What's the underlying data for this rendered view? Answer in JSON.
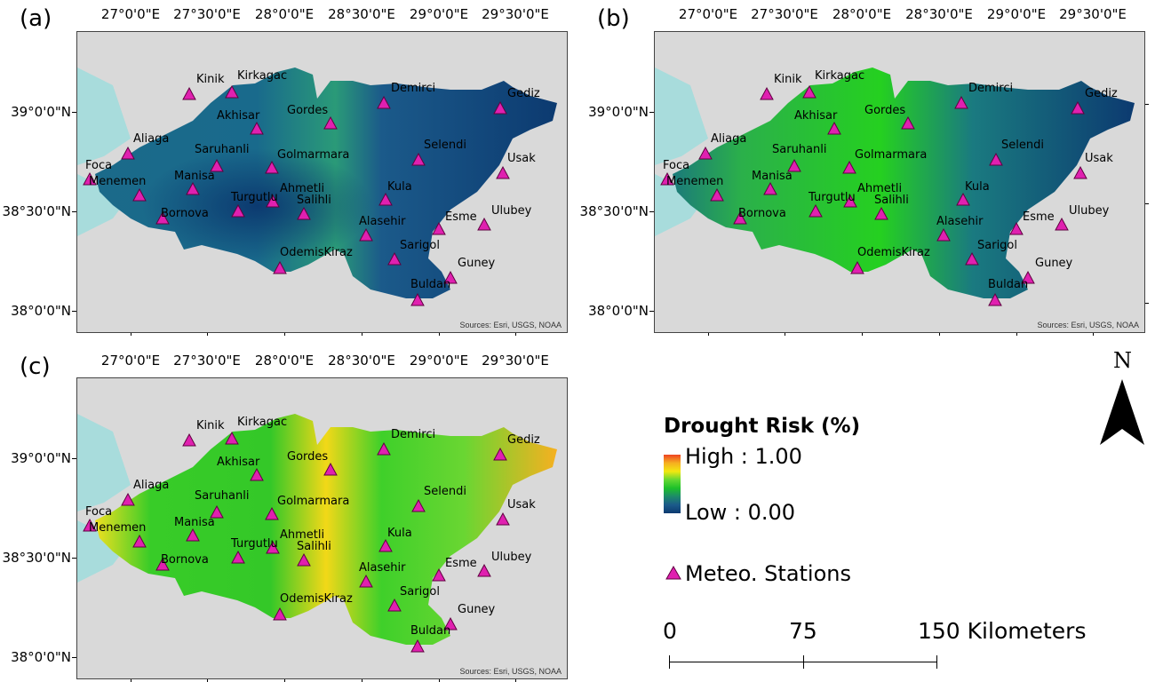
{
  "panels": [
    {
      "label": "(a)",
      "source": "Sources: Esri, USGS, NOAA"
    },
    {
      "label": "(b)",
      "source": "Sources: Esri, USGS, NOAA"
    },
    {
      "label": "(c)",
      "source": "Sources: Esri, USGS, NOAA"
    }
  ],
  "lon_labels": [
    "27°0'0\"E",
    "27°30'0\"E",
    "28°0'0\"E",
    "28°30'0\"E",
    "29°0'0\"E",
    "29°30'0\"E"
  ],
  "lat_labels": [
    "39°0'0\"N",
    "38°30'0\"N",
    "38°0'0\"N"
  ],
  "stations": [
    "Kinik",
    "Kirkagac",
    "Demirci",
    "Gediz",
    "Akhisar",
    "Gordes",
    "Aliaga",
    "Saruhanli",
    "Selendi",
    "Foca",
    "Manisa",
    "Golmarmara",
    "Usak",
    "Menemen",
    "Ahmetli",
    "Kula",
    "Bornova",
    "Turgutlu",
    "Salihli",
    "Alasehir",
    "Esme",
    "Ulubey",
    "Sarigol",
    "OdemisKiraz",
    "Guney",
    "Buldan"
  ],
  "legend": {
    "title": "Drought Risk (%)",
    "high": "High : 1.00",
    "low": "Low : 0.00",
    "stations": "Meteo. Stations",
    "scale": [
      "0",
      "75",
      "150 Kilometers"
    ],
    "north": "N"
  },
  "colors": {
    "station_fill": "#e020b0",
    "sea": "#a8dcdc",
    "terrain": "#d6d6d6",
    "low": "#0c3a70",
    "mid": "#1dc02a",
    "high": "#f6b020"
  }
}
